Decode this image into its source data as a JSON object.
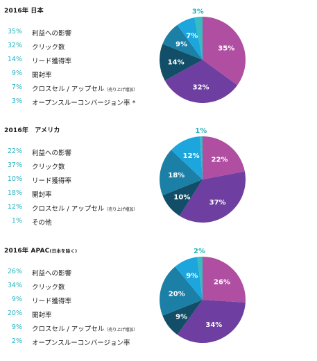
{
  "chart_data": [
    {
      "type": "pie",
      "title": "2016年 日本",
      "title_note": "",
      "categories": [
        "利益への影響",
        "クリック数",
        "リード獲得率",
        "開封率",
        "クロスセル / アップセル",
        "オープンスルーコンバージョン率 *"
      ],
      "category_notes": [
        "",
        "",
        "",
        "",
        "（売り上げ増加）",
        ""
      ],
      "values": [
        35,
        32,
        14,
        9,
        7,
        3
      ],
      "labels": [
        "35%",
        "32%",
        "14%",
        "9%",
        "7%",
        "3%"
      ],
      "colors": [
        "#b04fa2",
        "#6e3fa0",
        "#124e68",
        "#1c7fa6",
        "#1ca6dd",
        "#37bcc2"
      ]
    },
    {
      "type": "pie",
      "title": "2016年　アメリカ",
      "title_note": "",
      "categories": [
        "利益への影響",
        "クリック数",
        "リード獲得率",
        "開封率",
        "クロスセル / アップセル",
        "その他"
      ],
      "category_notes": [
        "",
        "",
        "",
        "",
        "（売り上げ増加）",
        ""
      ],
      "values": [
        22,
        37,
        10,
        18,
        12,
        1
      ],
      "labels": [
        "22%",
        "37%",
        "10%",
        "18%",
        "12%",
        "1%"
      ],
      "colors": [
        "#b04fa2",
        "#6e3fa0",
        "#124e68",
        "#1c7fa6",
        "#1ca6dd",
        "#37bcc2"
      ]
    },
    {
      "type": "pie",
      "title": "2016年 APAC",
      "title_note": "(日本を除く)",
      "categories": [
        "利益への影響",
        "クリック数",
        "リード獲得率",
        "開封率",
        "クロスセル / アップセル",
        "オープンスルーコンバージョン率"
      ],
      "category_notes": [
        "",
        "",
        "",
        "",
        "（売り上げ増加）",
        ""
      ],
      "values": [
        26,
        34,
        9,
        20,
        9,
        2
      ],
      "labels": [
        "26%",
        "34%",
        "9%",
        "20%",
        "9%",
        "2%"
      ],
      "colors": [
        "#b04fa2",
        "#6e3fa0",
        "#124e68",
        "#1c7fa6",
        "#1ca6dd",
        "#37bcc2"
      ]
    }
  ]
}
